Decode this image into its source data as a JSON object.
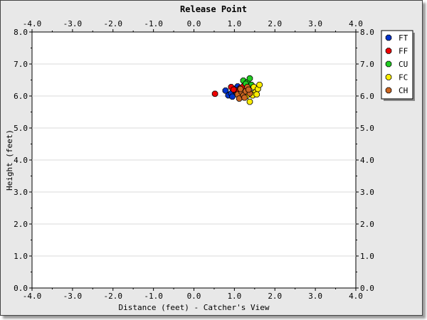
{
  "chart_data": {
    "type": "scatter",
    "title": "Release Point",
    "xlabel": "Distance (feet) - Catcher's View",
    "ylabel": "Height (feet)",
    "xlim": [
      -4.0,
      4.0
    ],
    "ylim": [
      0.0,
      8.0
    ],
    "x_ticks": [
      "-4.0",
      "-3.0",
      "-2.0",
      "-1.0",
      "0.0",
      "1.0",
      "2.0",
      "3.0",
      "4.0"
    ],
    "y_ticks": [
      "0.0",
      "1.0",
      "2.0",
      "3.0",
      "4.0",
      "5.0",
      "6.0",
      "7.0",
      "8.0"
    ],
    "grid": "horizontal",
    "legend_position": "top-right",
    "series": [
      {
        "name": "FT",
        "color": "#0033cc",
        "points": [
          [
            0.78,
            6.17
          ],
          [
            0.85,
            6.02
          ],
          [
            0.92,
            6.08
          ],
          [
            0.98,
            6.22
          ],
          [
            1.02,
            6.15
          ],
          [
            1.08,
            6.3
          ],
          [
            1.12,
            6.05
          ],
          [
            0.95,
            5.98
          ],
          [
            1.18,
            6.2
          ],
          [
            1.05,
            6.1
          ]
        ]
      },
      {
        "name": "FF",
        "color": "#ee0000",
        "points": [
          [
            0.52,
            6.07
          ],
          [
            0.92,
            6.28
          ],
          [
            1.02,
            6.18
          ],
          [
            1.1,
            6.12
          ],
          [
            1.15,
            6.25
          ],
          [
            0.98,
            6.2
          ],
          [
            1.22,
            6.3
          ],
          [
            1.28,
            6.08
          ]
        ]
      },
      {
        "name": "CU",
        "color": "#22cc22",
        "points": [
          [
            1.22,
            6.48
          ],
          [
            1.32,
            6.43
          ],
          [
            1.38,
            6.55
          ],
          [
            1.28,
            6.38
          ],
          [
            1.42,
            6.35
          ]
        ]
      },
      {
        "name": "FC",
        "color": "#ffee00",
        "points": [
          [
            1.35,
            6.18
          ],
          [
            1.42,
            6.08
          ],
          [
            1.48,
            6.28
          ],
          [
            1.52,
            6.12
          ],
          [
            1.58,
            6.22
          ],
          [
            1.62,
            6.35
          ],
          [
            1.45,
            6.02
          ],
          [
            1.55,
            6.05
          ],
          [
            1.38,
            5.82
          ],
          [
            1.3,
            6.0
          ]
        ]
      },
      {
        "name": "CH",
        "color": "#cc6622",
        "points": [
          [
            1.08,
            6.05
          ],
          [
            1.12,
            5.92
          ],
          [
            1.18,
            6.12
          ],
          [
            1.22,
            6.02
          ],
          [
            1.28,
            6.15
          ],
          [
            1.32,
            6.28
          ],
          [
            1.38,
            6.08
          ],
          [
            1.15,
            6.22
          ],
          [
            1.25,
            5.95
          ],
          [
            1.35,
            6.2
          ]
        ]
      }
    ]
  }
}
